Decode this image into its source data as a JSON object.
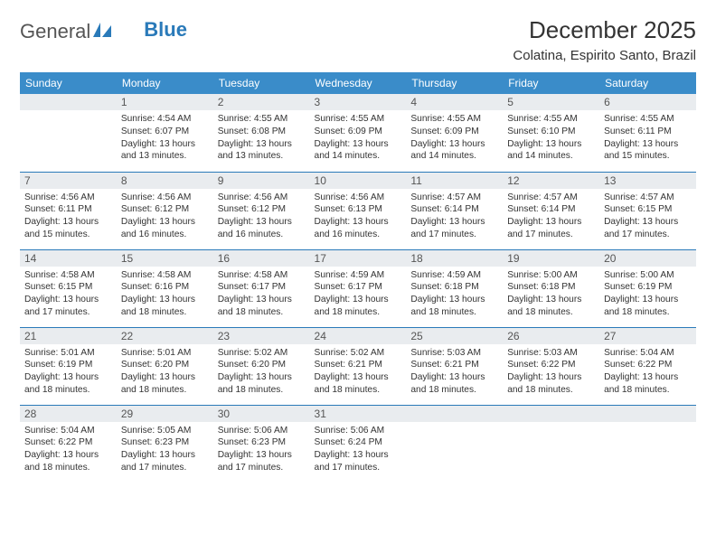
{
  "logo": {
    "text1": "General",
    "text2": "Blue"
  },
  "title": "December 2025",
  "location": "Colatina, Espirito Santo, Brazil",
  "colors": {
    "header_bg": "#3a8cc9",
    "daynum_bg": "#e9ecef",
    "row_border": "#2a7ab9",
    "logo_blue": "#2a7ab9"
  },
  "day_headers": [
    "Sunday",
    "Monday",
    "Tuesday",
    "Wednesday",
    "Thursday",
    "Friday",
    "Saturday"
  ],
  "weeks": [
    [
      {
        "n": "",
        "sr": "",
        "ss": "",
        "dl": ""
      },
      {
        "n": "1",
        "sr": "Sunrise: 4:54 AM",
        "ss": "Sunset: 6:07 PM",
        "dl": "Daylight: 13 hours and 13 minutes."
      },
      {
        "n": "2",
        "sr": "Sunrise: 4:55 AM",
        "ss": "Sunset: 6:08 PM",
        "dl": "Daylight: 13 hours and 13 minutes."
      },
      {
        "n": "3",
        "sr": "Sunrise: 4:55 AM",
        "ss": "Sunset: 6:09 PM",
        "dl": "Daylight: 13 hours and 14 minutes."
      },
      {
        "n": "4",
        "sr": "Sunrise: 4:55 AM",
        "ss": "Sunset: 6:09 PM",
        "dl": "Daylight: 13 hours and 14 minutes."
      },
      {
        "n": "5",
        "sr": "Sunrise: 4:55 AM",
        "ss": "Sunset: 6:10 PM",
        "dl": "Daylight: 13 hours and 14 minutes."
      },
      {
        "n": "6",
        "sr": "Sunrise: 4:55 AM",
        "ss": "Sunset: 6:11 PM",
        "dl": "Daylight: 13 hours and 15 minutes."
      }
    ],
    [
      {
        "n": "7",
        "sr": "Sunrise: 4:56 AM",
        "ss": "Sunset: 6:11 PM",
        "dl": "Daylight: 13 hours and 15 minutes."
      },
      {
        "n": "8",
        "sr": "Sunrise: 4:56 AM",
        "ss": "Sunset: 6:12 PM",
        "dl": "Daylight: 13 hours and 16 minutes."
      },
      {
        "n": "9",
        "sr": "Sunrise: 4:56 AM",
        "ss": "Sunset: 6:12 PM",
        "dl": "Daylight: 13 hours and 16 minutes."
      },
      {
        "n": "10",
        "sr": "Sunrise: 4:56 AM",
        "ss": "Sunset: 6:13 PM",
        "dl": "Daylight: 13 hours and 16 minutes."
      },
      {
        "n": "11",
        "sr": "Sunrise: 4:57 AM",
        "ss": "Sunset: 6:14 PM",
        "dl": "Daylight: 13 hours and 17 minutes."
      },
      {
        "n": "12",
        "sr": "Sunrise: 4:57 AM",
        "ss": "Sunset: 6:14 PM",
        "dl": "Daylight: 13 hours and 17 minutes."
      },
      {
        "n": "13",
        "sr": "Sunrise: 4:57 AM",
        "ss": "Sunset: 6:15 PM",
        "dl": "Daylight: 13 hours and 17 minutes."
      }
    ],
    [
      {
        "n": "14",
        "sr": "Sunrise: 4:58 AM",
        "ss": "Sunset: 6:15 PM",
        "dl": "Daylight: 13 hours and 17 minutes."
      },
      {
        "n": "15",
        "sr": "Sunrise: 4:58 AM",
        "ss": "Sunset: 6:16 PM",
        "dl": "Daylight: 13 hours and 18 minutes."
      },
      {
        "n": "16",
        "sr": "Sunrise: 4:58 AM",
        "ss": "Sunset: 6:17 PM",
        "dl": "Daylight: 13 hours and 18 minutes."
      },
      {
        "n": "17",
        "sr": "Sunrise: 4:59 AM",
        "ss": "Sunset: 6:17 PM",
        "dl": "Daylight: 13 hours and 18 minutes."
      },
      {
        "n": "18",
        "sr": "Sunrise: 4:59 AM",
        "ss": "Sunset: 6:18 PM",
        "dl": "Daylight: 13 hours and 18 minutes."
      },
      {
        "n": "19",
        "sr": "Sunrise: 5:00 AM",
        "ss": "Sunset: 6:18 PM",
        "dl": "Daylight: 13 hours and 18 minutes."
      },
      {
        "n": "20",
        "sr": "Sunrise: 5:00 AM",
        "ss": "Sunset: 6:19 PM",
        "dl": "Daylight: 13 hours and 18 minutes."
      }
    ],
    [
      {
        "n": "21",
        "sr": "Sunrise: 5:01 AM",
        "ss": "Sunset: 6:19 PM",
        "dl": "Daylight: 13 hours and 18 minutes."
      },
      {
        "n": "22",
        "sr": "Sunrise: 5:01 AM",
        "ss": "Sunset: 6:20 PM",
        "dl": "Daylight: 13 hours and 18 minutes."
      },
      {
        "n": "23",
        "sr": "Sunrise: 5:02 AM",
        "ss": "Sunset: 6:20 PM",
        "dl": "Daylight: 13 hours and 18 minutes."
      },
      {
        "n": "24",
        "sr": "Sunrise: 5:02 AM",
        "ss": "Sunset: 6:21 PM",
        "dl": "Daylight: 13 hours and 18 minutes."
      },
      {
        "n": "25",
        "sr": "Sunrise: 5:03 AM",
        "ss": "Sunset: 6:21 PM",
        "dl": "Daylight: 13 hours and 18 minutes."
      },
      {
        "n": "26",
        "sr": "Sunrise: 5:03 AM",
        "ss": "Sunset: 6:22 PM",
        "dl": "Daylight: 13 hours and 18 minutes."
      },
      {
        "n": "27",
        "sr": "Sunrise: 5:04 AM",
        "ss": "Sunset: 6:22 PM",
        "dl": "Daylight: 13 hours and 18 minutes."
      }
    ],
    [
      {
        "n": "28",
        "sr": "Sunrise: 5:04 AM",
        "ss": "Sunset: 6:22 PM",
        "dl": "Daylight: 13 hours and 18 minutes."
      },
      {
        "n": "29",
        "sr": "Sunrise: 5:05 AM",
        "ss": "Sunset: 6:23 PM",
        "dl": "Daylight: 13 hours and 17 minutes."
      },
      {
        "n": "30",
        "sr": "Sunrise: 5:06 AM",
        "ss": "Sunset: 6:23 PM",
        "dl": "Daylight: 13 hours and 17 minutes."
      },
      {
        "n": "31",
        "sr": "Sunrise: 5:06 AM",
        "ss": "Sunset: 6:24 PM",
        "dl": "Daylight: 13 hours and 17 minutes."
      },
      {
        "n": "",
        "sr": "",
        "ss": "",
        "dl": ""
      },
      {
        "n": "",
        "sr": "",
        "ss": "",
        "dl": ""
      },
      {
        "n": "",
        "sr": "",
        "ss": "",
        "dl": ""
      }
    ]
  ]
}
